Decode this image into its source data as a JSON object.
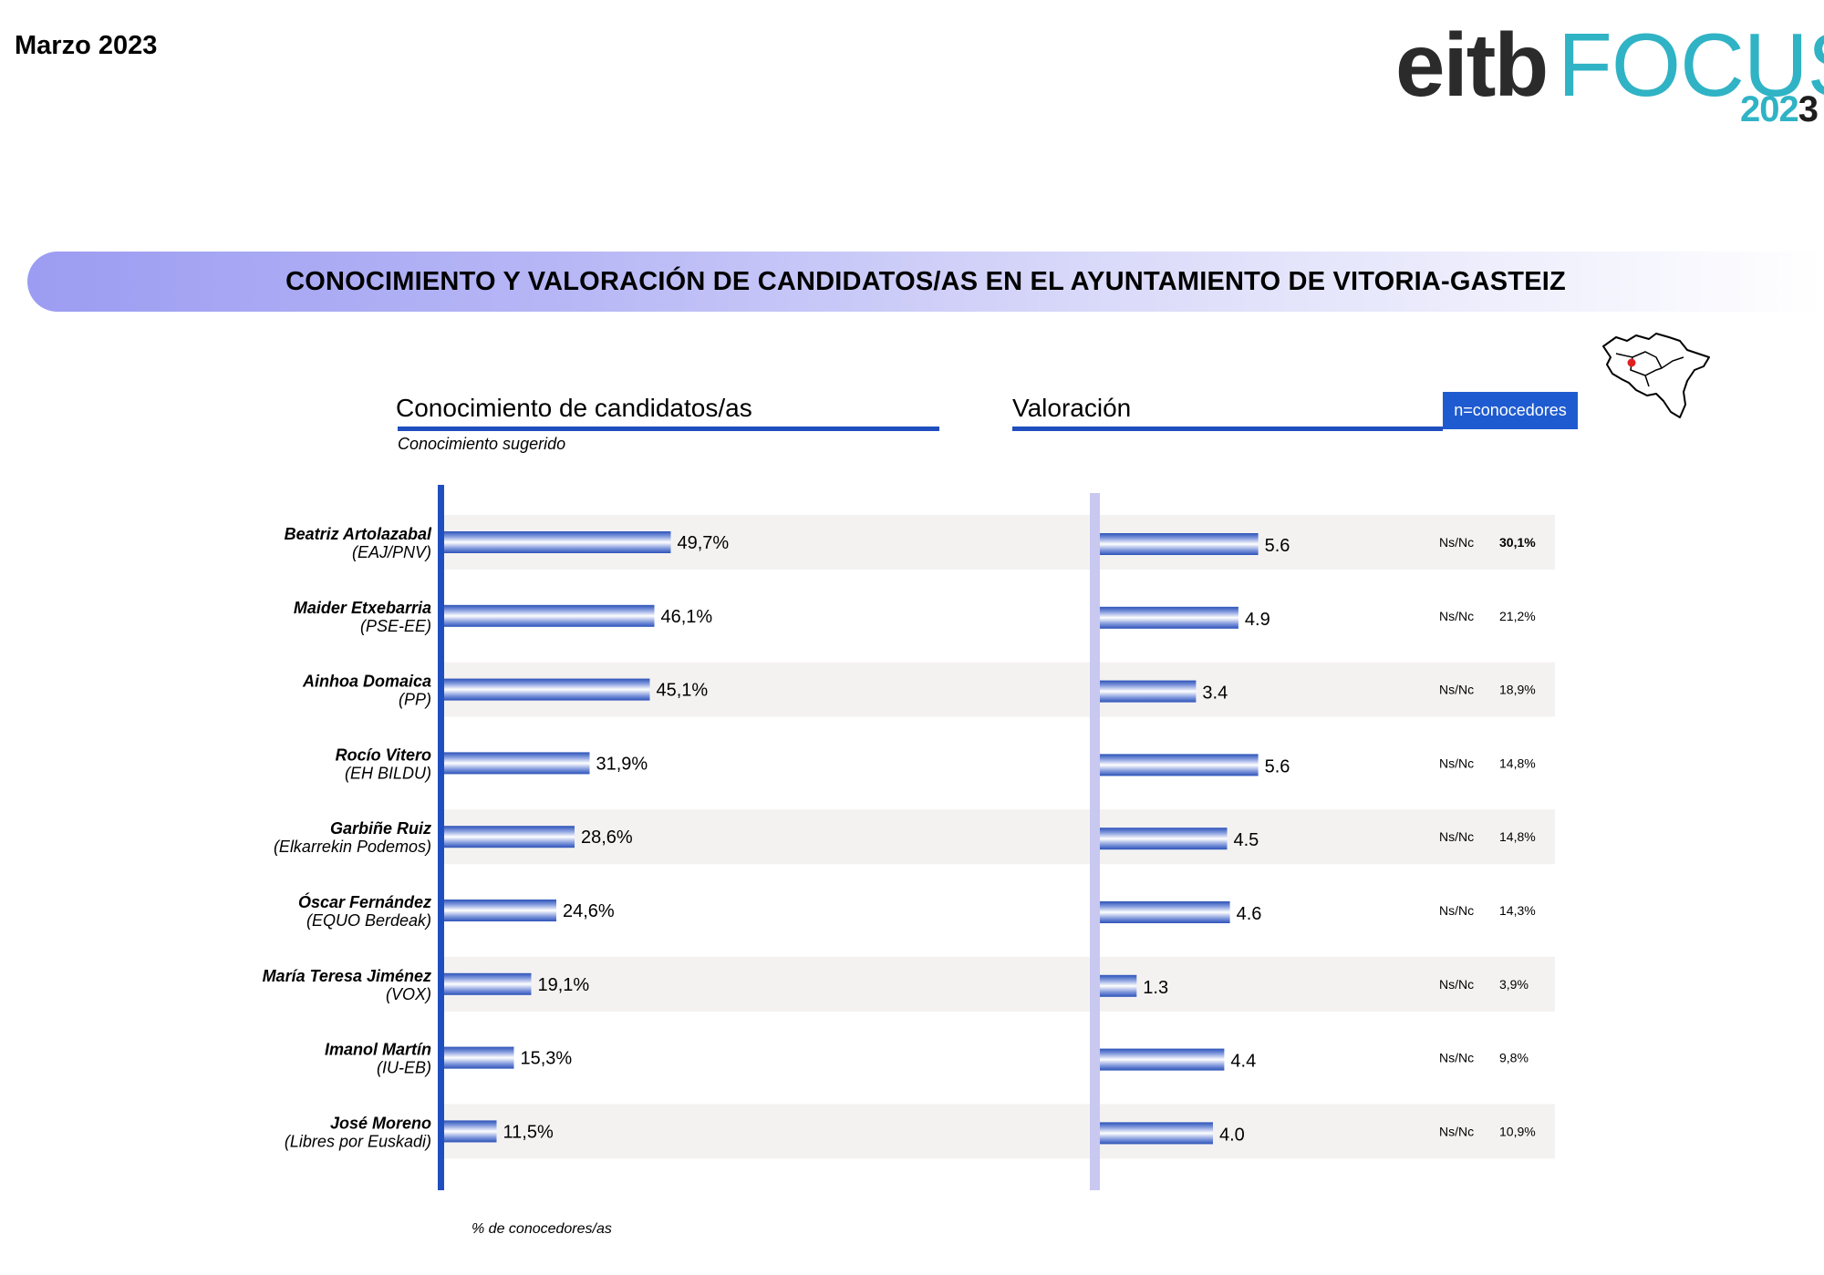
{
  "header": {
    "date": "Marzo 2023",
    "logo": {
      "eitb": "eitb",
      "focus": "FOCUS",
      "year_a": "202",
      "year_b": "3"
    }
  },
  "banner": {
    "title": "CONOCIMIENTO Y VALORACIÓN DE CANDIDATOS/AS EN EL AYUNTAMIENTO DE VITORIA-GASTEIZ"
  },
  "map_icon": "basque-country-map-icon",
  "sections": {
    "knowledge": {
      "title": "Conocimiento de candidatos/as",
      "subtitle": "Conocimiento sugerido"
    },
    "rating": {
      "title": "Valoración",
      "badge": "n=conocedores"
    }
  },
  "footnote": "% de conocedores/as",
  "colors": {
    "accent": "#1f4fbf",
    "bar_edge": "#2c52b8",
    "stripe": "#f4f2f1",
    "rating_axis": "#c8c8f0",
    "banner": "#9c9cf2"
  },
  "chart_data": [
    {
      "type": "bar",
      "orientation": "horizontal",
      "title": "Conocimiento de candidatos/as",
      "subtitle": "Conocimiento sugerido",
      "unit": "%",
      "xlim": [
        0,
        100
      ],
      "categories": [
        "Beatriz Artolazabal (EAJ/PNV)",
        "Maider Etxebarria (PSE-EE)",
        "Ainhoa Domaica (PP)",
        "Rocío Vitero (EH BILDU)",
        "Garbiñe Ruiz (Elkarrekin Podemos)",
        "Óscar Fernández (EQUO Berdeak)",
        "María Teresa Jiménez (VOX)",
        "Imanol Martín (IU-EB)",
        "José Moreno (Libres por Euskadi)"
      ],
      "values": [
        49.7,
        46.1,
        45.1,
        31.9,
        28.6,
        24.6,
        19.1,
        15.3,
        11.5
      ],
      "value_labels": [
        "49,7%",
        "46,1%",
        "45,1%",
        "31,9%",
        "28,6%",
        "24,6%",
        "19,1%",
        "15,3%",
        "11,5%"
      ]
    },
    {
      "type": "bar",
      "orientation": "horizontal",
      "title": "Valoración",
      "xlim": [
        0,
        10
      ],
      "values": [
        5.6,
        4.9,
        3.4,
        5.6,
        4.5,
        4.6,
        1.3,
        4.4,
        4.0
      ],
      "value_labels": [
        "5.6",
        "4.9",
        "3.4",
        "5.6",
        "4.5",
        "4.6",
        "1.3",
        "4.4",
        "4.0"
      ],
      "nsnc_label": "Ns/Nc",
      "nsnc_values": [
        "30,1%",
        "21,2%",
        "18,9%",
        "14,8%",
        "14,8%",
        "14,3%",
        "3,9%",
        "9,8%",
        "10,9%"
      ]
    }
  ],
  "candidates": [
    {
      "name": "Beatriz Artolazabal",
      "party": "(EAJ/PNV)"
    },
    {
      "name": "Maider Etxebarria",
      "party": "(PSE-EE)"
    },
    {
      "name": "Ainhoa Domaica",
      "party": "(PP)"
    },
    {
      "name": "Rocío Vitero",
      "party": "(EH BILDU)"
    },
    {
      "name": "Garbiñe Ruiz",
      "party": "(Elkarrekin Podemos)"
    },
    {
      "name": "Óscar Fernández",
      "party": "(EQUO Berdeak)"
    },
    {
      "name": "María Teresa Jiménez",
      "party": "(VOX)"
    },
    {
      "name": "Imanol Martín",
      "party": "(IU-EB)"
    },
    {
      "name": "José Moreno",
      "party": "(Libres por Euskadi)"
    }
  ]
}
